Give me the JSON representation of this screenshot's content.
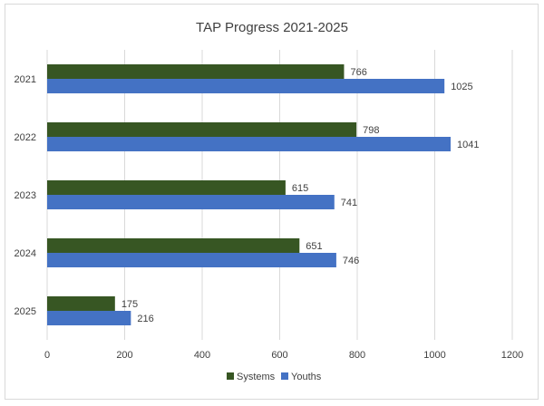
{
  "chart_data": {
    "type": "bar",
    "orientation": "horizontal",
    "title": "TAP Progress 2021-2025",
    "categories": [
      "2021",
      "2022",
      "2023",
      "2024",
      "2025"
    ],
    "series": [
      {
        "name": "Systems",
        "values": [
          766,
          798,
          615,
          651,
          175
        ],
        "color": "#375623"
      },
      {
        "name": "Youths",
        "values": [
          1025,
          1041,
          741,
          746,
          216
        ],
        "color": "#4472c4"
      }
    ],
    "xlim": [
      0,
      1200
    ],
    "xticks": [
      0,
      200,
      400,
      600,
      800,
      1000,
      1200
    ],
    "grid": "vertical",
    "legend": "bottom",
    "data_labels": true,
    "gridline_color": "#d9d9d9"
  }
}
